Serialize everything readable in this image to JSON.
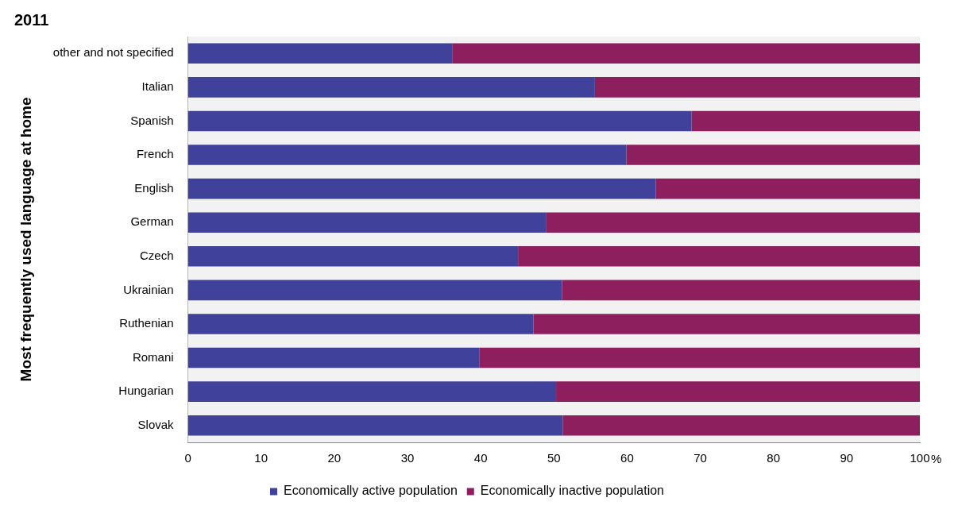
{
  "chart_data": {
    "type": "bar",
    "orientation": "horizontal",
    "stacked": true,
    "title": "2011",
    "ylabel": "Most frequently used language at home",
    "xlabel": "%",
    "categories": [
      "other and not specified",
      "Italian",
      "Spanish",
      "French",
      "English",
      "German",
      "Czech",
      "Ukrainian",
      "Ruthenian",
      "Romani",
      "Hungarian",
      "Slovak"
    ],
    "series": [
      {
        "name": "Economically active population",
        "color": "#40419a",
        "values": [
          36.1,
          55.6,
          68.8,
          59.9,
          63.9,
          48.9,
          45.1,
          51.1,
          47.2,
          39.8,
          50.3,
          51.2
        ]
      },
      {
        "name": "Economically inactive population",
        "color": "#8e1f5e",
        "values": [
          63.9,
          44.4,
          31.2,
          40.1,
          36.1,
          51.1,
          54.9,
          48.9,
          52.8,
          60.2,
          49.7,
          48.8
        ]
      }
    ],
    "xlim": [
      0,
      100
    ],
    "xticks": [
      0,
      10,
      20,
      30,
      40,
      50,
      60,
      70,
      80,
      90,
      100
    ],
    "grid": false,
    "legend": "bottom"
  }
}
